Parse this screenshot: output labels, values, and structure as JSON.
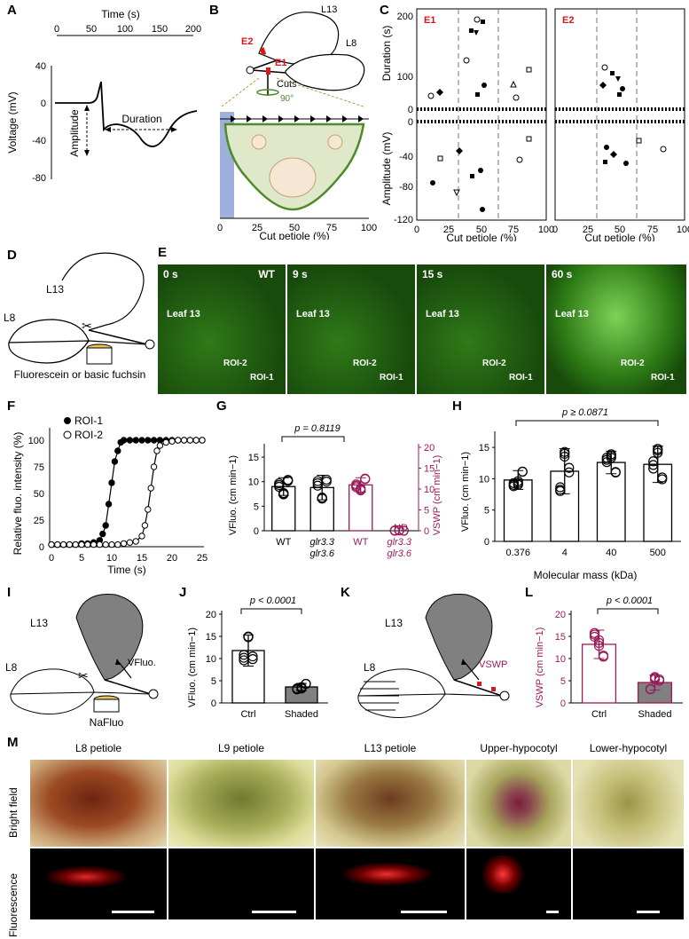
{
  "panels": {
    "A": {
      "label": "A",
      "time_axis_title": "Time (s)",
      "time_ticks": [
        "0",
        "50",
        "100",
        "150",
        "200"
      ],
      "voltage_axis_title": "Voltage (mV)",
      "voltage_ticks": [
        "40",
        "0",
        "-40",
        "-80"
      ],
      "amplitude_label": "Amplitude",
      "duration_label": "Duration"
    },
    "B": {
      "label": "B",
      "leaf_labels": [
        "L13",
        "L8"
      ],
      "cut_labels": [
        "E2",
        "E1"
      ],
      "cuts_label": "Cuts",
      "rotation_label": "90°",
      "x_ticks": [
        "0",
        "25",
        "50",
        "75",
        "100"
      ],
      "x_title": "Cut petiole (%)"
    },
    "C": {
      "label": "C",
      "subpanels": [
        "E1",
        "E2"
      ],
      "duration_title": "Duration (s)",
      "amplitude_title": "Amplitude (mV)",
      "duration_ticks": [
        "200",
        "100",
        "0"
      ],
      "amplitude_ticks": [
        "0",
        "-40",
        "-80",
        "-120"
      ],
      "x_ticks": [
        "0",
        "25",
        "50",
        "75",
        "100"
      ],
      "x_title": "Cut petiole (%)"
    },
    "D": {
      "label": "D",
      "leaf_labels": [
        "L13",
        "L8"
      ],
      "caption": "Fluorescein or basic fuchsin"
    },
    "E": {
      "label": "E",
      "frames": [
        {
          "time": "0 s",
          "tag": "WT"
        },
        {
          "time": "9 s"
        },
        {
          "time": "15 s"
        },
        {
          "time": "60 s"
        }
      ],
      "leaf_label": "Leaf 13",
      "roi_labels": [
        "ROI-2",
        "ROI-1"
      ]
    },
    "F": {
      "label": "F",
      "y_title": "Relative fluo. intensity (%)",
      "x_title": "Time (s)",
      "y_ticks": [
        "100",
        "75",
        "50",
        "25",
        "0"
      ],
      "x_ticks": [
        "0",
        "5",
        "10",
        "15",
        "20",
        "25"
      ],
      "legend": [
        "ROI-1",
        "ROI-2"
      ]
    },
    "G": {
      "label": "G",
      "p_value": "p = 0.8119",
      "left_title": "VFluo. (cm min−1)",
      "right_title": "VSWP (cm min−1)",
      "left_ticks": [
        "15",
        "10",
        "5",
        "0"
      ],
      "right_ticks": [
        "20",
        "15",
        "10",
        "5",
        "0"
      ],
      "categories": [
        "WT",
        "glr3.3 glr3.6",
        "WT",
        "glr3.3 glr3.6"
      ],
      "nd": "ND"
    },
    "H": {
      "label": "H",
      "p_value": "p ≥ 0.0871",
      "y_title": "VFluo. (cm min−1)",
      "y_ticks": [
        "15",
        "10",
        "5",
        "0"
      ],
      "categories": [
        "0.376",
        "4",
        "40",
        "500"
      ],
      "x_title": "Molecular mass (kDa)"
    },
    "I": {
      "label": "I",
      "leaf_labels": [
        "L13",
        "L8"
      ],
      "vlabel": "VFluo.",
      "caption": "NaFluo"
    },
    "J": {
      "label": "J",
      "p_value": "p < 0.0001",
      "y_title": "VFluo. (cm min−1)",
      "y_ticks": [
        "20",
        "15",
        "10",
        "5",
        "0"
      ],
      "categories": [
        "Ctrl",
        "Shaded"
      ]
    },
    "K": {
      "label": "K",
      "leaf_labels": [
        "L13",
        "L8"
      ],
      "vlabel": "VSWP"
    },
    "L": {
      "label": "L",
      "p_value": "p < 0.0001",
      "y_title": "VSWP (cm min−1)",
      "y_ticks": [
        "20",
        "15",
        "10",
        "5",
        "0"
      ],
      "categories": [
        "Ctrl",
        "Shaded"
      ]
    },
    "M": {
      "label": "M",
      "columns": [
        "L8 petiole",
        "L9 petiole",
        "L13 petiole",
        "Upper-hypocotyl",
        "Lower-hypocotyl"
      ],
      "rows": [
        "Bright field",
        "Fluorescence"
      ]
    }
  },
  "chart_data": [
    {
      "type": "scatter",
      "panel": "F",
      "xlabel": "Time (s)",
      "ylabel": "Relative fluo. intensity (%)",
      "xlim": [
        0,
        25
      ],
      "ylim": [
        0,
        100
      ],
      "series": [
        {
          "name": "ROI-1",
          "x": [
            0,
            1,
            2,
            3,
            4,
            5,
            6,
            7,
            8,
            8.5,
            9,
            9.5,
            10,
            10.5,
            11,
            11.5,
            12,
            13,
            14,
            15,
            16,
            17,
            18,
            19,
            20,
            21,
            22,
            23,
            24,
            25
          ],
          "y": [
            2,
            2,
            2,
            2,
            2,
            3,
            3,
            4,
            6,
            12,
            20,
            40,
            60,
            80,
            90,
            98,
            100,
            100,
            100,
            100,
            100,
            100,
            100,
            100,
            100,
            100,
            100,
            100,
            100,
            100
          ]
        },
        {
          "name": "ROI-2",
          "x": [
            0,
            1,
            2,
            3,
            4,
            5,
            6,
            7,
            8,
            9,
            10,
            11,
            12,
            13,
            14,
            15,
            15.5,
            16,
            16.5,
            17,
            17.5,
            18,
            19,
            20,
            21,
            22,
            23,
            24,
            25
          ],
          "y": [
            2,
            2,
            2,
            2,
            2,
            2,
            2,
            2,
            2,
            2,
            2,
            2,
            3,
            4,
            5,
            10,
            20,
            35,
            55,
            75,
            90,
            95,
            98,
            99,
            100,
            100,
            100,
            100,
            100
          ]
        }
      ]
    },
    {
      "type": "bar",
      "panel": "G",
      "categories": [
        "WT (VFluo.)",
        "glr3.3 glr3.6 (VFluo.)",
        "WT (VSWP)",
        "glr3.3 glr3.6 (VSWP)"
      ],
      "values": [
        9.0,
        8.8,
        11.0,
        0
      ],
      "errors": [
        1.8,
        2.5,
        1.7,
        0
      ]
    },
    {
      "type": "bar",
      "panel": "H",
      "categories": [
        "0.376",
        "4",
        "40",
        "500"
      ],
      "values": [
        9.8,
        11.2,
        12.6,
        12.3
      ],
      "errors": [
        1.5,
        3.6,
        1.8,
        2.9
      ],
      "ylim": [
        0,
        17
      ]
    },
    {
      "type": "bar",
      "panel": "J",
      "categories": [
        "Ctrl",
        "Shaded"
      ],
      "values": [
        11.8,
        3.6
      ],
      "errors": [
        3.5,
        0.8
      ],
      "ylim": [
        0,
        20
      ]
    },
    {
      "type": "bar",
      "panel": "L",
      "categories": [
        "Ctrl",
        "Shaded"
      ],
      "values": [
        13.2,
        4.6
      ],
      "errors": [
        3.2,
        1.7
      ],
      "ylim": [
        0,
        20
      ]
    }
  ],
  "colors": {
    "magenta": "#9b1b5a",
    "red": "#d7191c",
    "green": "#4f8a2b",
    "blue": "#9fb0dc",
    "fluor_green": "#2f9d1c"
  }
}
